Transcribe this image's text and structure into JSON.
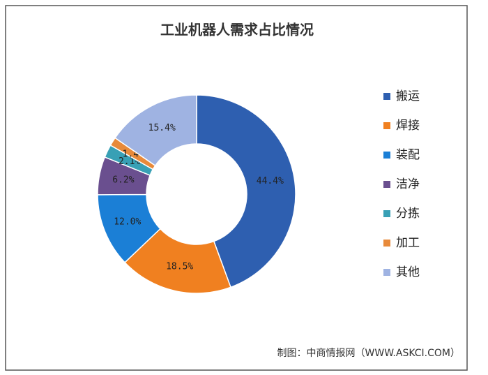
{
  "chart_data": {
    "type": "donut",
    "title": "工业机器人需求占比情况",
    "categories": [
      "搬运",
      "焊接",
      "装配",
      "洁净",
      "分拣",
      "加工",
      "其他"
    ],
    "values": [
      44.4,
      18.5,
      12.0,
      6.2,
      2.1,
      1.4,
      15.4
    ],
    "value_labels": [
      "44.4%",
      "18.5%",
      "12.0%",
      "6.2%",
      "2.1%",
      "1.4%",
      "15.4%"
    ],
    "colors": [
      "#2e5fb0",
      "#f08020",
      "#1b7fd6",
      "#6a4f8f",
      "#38a0b5",
      "#e88a3a",
      "#9fb3e2"
    ],
    "legend": "right",
    "source": "制图：中商情报网（WWW.ASKCI.COM）"
  }
}
